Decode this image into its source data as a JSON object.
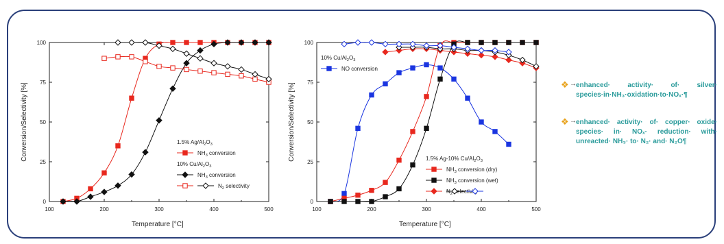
{
  "colors": {
    "frame": "#2a3f7a",
    "red": "#e8281e",
    "black": "#111111",
    "blue": "#1a35e0",
    "bullet_text": "#2a9b9b",
    "bullet_icon": "#e8a21b"
  },
  "chart_data": [
    {
      "type": "line",
      "xlabel": "Temperature [°C]",
      "ylabel": "Conversion/Selectivity [%]",
      "xlim": [
        100,
        500
      ],
      "ylim": [
        0,
        100
      ],
      "xticks": [
        "100",
        "200",
        "300",
        "400",
        "500"
      ],
      "yticks": [
        "0",
        "25",
        "50",
        "75",
        "100"
      ],
      "legend": [
        {
          "group": "1.5% Ag/Al2O3"
        },
        {
          "name": "NH3 conversion",
          "color": "#e8281e",
          "marker": "square-filled"
        },
        {
          "group": "10% Cu/Al2O3"
        },
        {
          "name": "NH3 conversion",
          "color": "#111111",
          "marker": "diamond-filled"
        },
        {
          "name": "N2 selectivity",
          "color": "#e8281e",
          "marker": "square-open",
          "marker2": "diamond-open"
        }
      ],
      "series": [
        {
          "color": "#e8281e",
          "marker": "square-filled",
          "x": [
            125,
            150,
            175,
            200,
            225,
            250,
            275,
            300,
            325,
            350,
            375,
            400,
            425,
            450,
            475,
            500
          ],
          "y": [
            0,
            2,
            8,
            18,
            35,
            65,
            90,
            99,
            100,
            100,
            100,
            100,
            100,
            100,
            100,
            100
          ]
        },
        {
          "color": "#111111",
          "marker": "diamond-filled",
          "x": [
            125,
            150,
            175,
            200,
            225,
            250,
            275,
            300,
            325,
            350,
            375,
            400,
            425,
            450,
            475,
            500
          ],
          "y": [
            0,
            0,
            3,
            6,
            10,
            17,
            31,
            51,
            71,
            87,
            95,
            99,
            100,
            100,
            100,
            100
          ]
        },
        {
          "color": "#e8281e",
          "marker": "square-open",
          "x": [
            200,
            225,
            250,
            275,
            300,
            325,
            350,
            375,
            400,
            425,
            450,
            475,
            500
          ],
          "y": [
            90,
            91,
            91,
            88,
            85,
            84,
            83,
            82,
            81,
            80,
            79,
            77,
            75
          ]
        },
        {
          "color": "#111111",
          "marker": "diamond-open",
          "x": [
            225,
            250,
            275,
            300,
            325,
            350,
            375,
            400,
            425,
            450,
            475,
            500
          ],
          "y": [
            100,
            100,
            100,
            98,
            96,
            93,
            90,
            87,
            85,
            83,
            80,
            77
          ]
        }
      ]
    },
    {
      "type": "line",
      "xlabel": "Temperature [°C]",
      "ylabel": "Conversion/Selectivity [%]",
      "xlim": [
        100,
        500
      ],
      "ylim": [
        0,
        100
      ],
      "xticks": [
        "100",
        "200",
        "300",
        "400",
        "500"
      ],
      "yticks": [
        "0",
        "25",
        "50",
        "75",
        "100"
      ],
      "legend_top": [
        {
          "group": "10% Cu/Al2O3"
        },
        {
          "name": "NO conversion",
          "color": "#1a35e0",
          "marker": "square-filled"
        }
      ],
      "legend": [
        {
          "group": "1.5% Ag-10% Cu/Al2O3"
        },
        {
          "name": "NH3 conversion (dry)",
          "color": "#e8281e",
          "marker": "square-filled"
        },
        {
          "name": "NH3 conversion (wet)",
          "color": "#111111",
          "marker": "square-filled"
        },
        {
          "name": "N2 selectivity",
          "color": "#e8281e",
          "marker": "diamond-filled"
        }
      ],
      "series": [
        {
          "color": "#1a35e0",
          "marker": "square-filled",
          "x": [
            125,
            150,
            175,
            200,
            225,
            250,
            275,
            300,
            325,
            350,
            375,
            400,
            425,
            450
          ],
          "y": [
            0,
            5,
            46,
            67,
            74,
            81,
            84,
            86,
            84,
            77,
            65,
            50,
            44,
            36
          ]
        },
        {
          "color": "#e8281e",
          "marker": "square-filled",
          "x": [
            125,
            150,
            175,
            200,
            225,
            250,
            275,
            300,
            325,
            350,
            375,
            400,
            425,
            450,
            475,
            500
          ],
          "y": [
            0,
            2,
            4,
            7,
            12,
            26,
            44,
            66,
            98,
            100,
            100,
            100,
            100,
            100,
            100,
            100
          ]
        },
        {
          "color": "#111111",
          "marker": "square-filled",
          "x": [
            125,
            150,
            175,
            200,
            225,
            250,
            275,
            300,
            325,
            350,
            375,
            400,
            425,
            450,
            475,
            500
          ],
          "y": [
            0,
            0,
            0,
            0,
            3,
            8,
            23,
            46,
            77,
            99,
            100,
            100,
            100,
            100,
            100,
            100
          ]
        },
        {
          "color": "#e8281e",
          "marker": "diamond-filled",
          "x": [
            225,
            250,
            275,
            300,
            325,
            350,
            375,
            400,
            425,
            450,
            475,
            500
          ],
          "y": [
            94,
            95,
            96,
            96,
            95,
            94,
            93,
            92,
            91,
            89,
            87,
            84
          ]
        },
        {
          "color": "#111111",
          "marker": "diamond-open",
          "x": [
            250,
            275,
            300,
            325,
            350,
            375,
            400,
            425,
            450,
            475,
            500
          ],
          "y": [
            97,
            97,
            97,
            96,
            96,
            95,
            95,
            94,
            92,
            89,
            85
          ]
        },
        {
          "color": "#1a35e0",
          "marker": "diamond-open",
          "x": [
            150,
            175,
            200,
            225,
            250,
            275,
            300,
            325,
            350,
            375,
            400,
            425,
            450
          ],
          "y": [
            99,
            100,
            100,
            99,
            99,
            99,
            98,
            98,
            97,
            96,
            95,
            95,
            94
          ]
        }
      ]
    }
  ],
  "bullets": [
    {
      "icon": "❖",
      "arrow": "→",
      "text": "enhanced· activity· of· silver· species·in·NH₃·oxidation·to·NOₓ·¶"
    },
    {
      "icon": "❖",
      "arrow": "→",
      "text": "enhanced· activity· of· copper· oxide· species· in· NOₓ· reduction· with· unreacted· NH₃· to· N₂· and· N₂O¶"
    }
  ]
}
